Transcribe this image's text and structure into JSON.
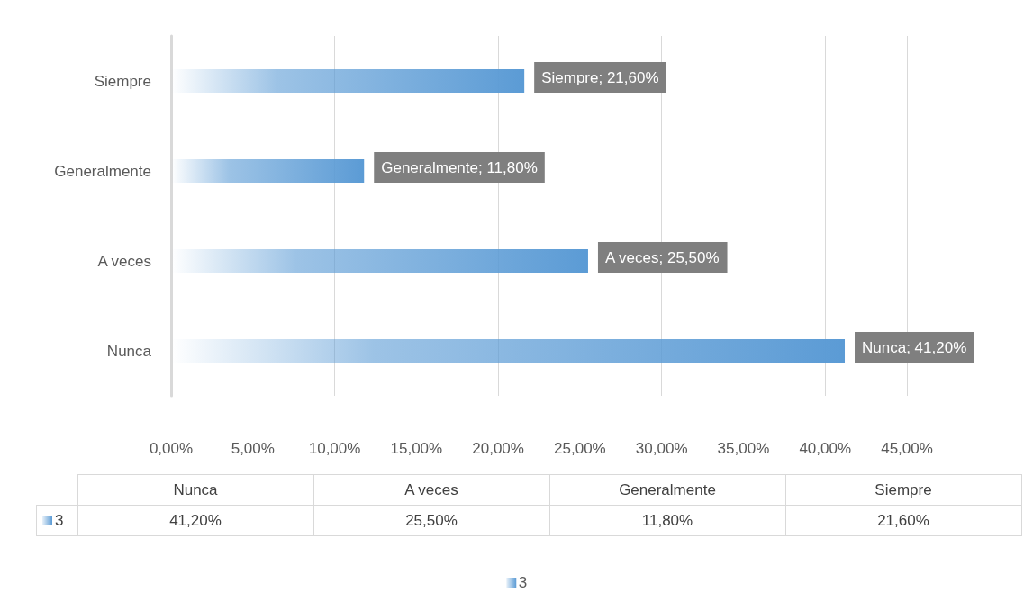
{
  "chart_data": {
    "type": "bar",
    "orientation": "horizontal",
    "categories": [
      "Siempre",
      "Generalmente",
      "A veces",
      "Nunca"
    ],
    "series": [
      {
        "name": "3",
        "color": "#5b9bd5",
        "values": [
          21.6,
          11.8,
          25.5,
          41.2
        ],
        "value_labels": [
          "Siempre; 21,60%",
          "Generalmente; 11,80%",
          "A veces; 25,50%",
          "Nunca; 41,20%"
        ]
      }
    ],
    "annotations": [
      "41,20%",
      "25,50%",
      "11,80%",
      "21,60%"
    ],
    "xlim": [
      0,
      45
    ],
    "xticks": [
      {
        "value": 0,
        "label": "0,00%"
      },
      {
        "value": 5,
        "label": "5,00%"
      },
      {
        "value": 10,
        "label": "10,00%"
      },
      {
        "value": 15,
        "label": "15,00%"
      },
      {
        "value": 20,
        "label": "20,00%"
      },
      {
        "value": 25,
        "label": "25,00%"
      },
      {
        "value": 30,
        "label": "30,00%"
      },
      {
        "value": 35,
        "label": "35,00%"
      },
      {
        "value": 40,
        "label": "40,00%"
      },
      {
        "value": 45,
        "label": "45,00%"
      }
    ],
    "grid": "x",
    "legend": "bottom"
  }
}
